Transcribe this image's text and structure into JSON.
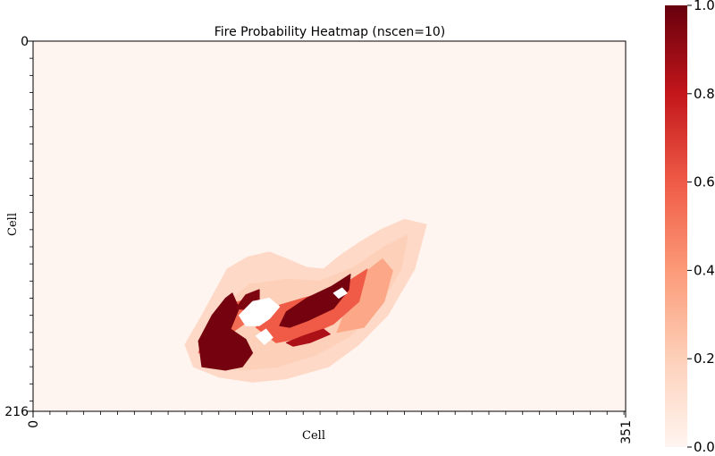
{
  "chart_data": {
    "type": "heatmap",
    "title": "Fire Probability Heatmap (nscen=10)",
    "xlabel": "Cell",
    "ylabel": "Cell",
    "x_ticks": [
      {
        "value": 0,
        "label": "0"
      },
      {
        "value": 351,
        "label": "351"
      }
    ],
    "y_ticks": [
      {
        "value": 0,
        "label": "0"
      },
      {
        "value": 216,
        "label": "216"
      }
    ],
    "xlim": [
      0,
      351
    ],
    "ylim": [
      216,
      0
    ],
    "grid_size": [
      352,
      217
    ],
    "colormap": "Reds",
    "colorbar": {
      "range": [
        0.0,
        1.0
      ],
      "ticks": [
        "0.0",
        "0.2",
        "0.4",
        "0.6",
        "0.8",
        "1.0"
      ],
      "colors": [
        "#fff5f0",
        "#fdd0b9",
        "#fc9a78",
        "#ef5b46",
        "#c3161b",
        "#67000d"
      ]
    },
    "background_color": "#fff5f0",
    "regions": [
      {
        "probability": 0.15,
        "polygon": [
          [
            90,
            177
          ],
          [
            100,
            160
          ],
          [
            115,
            133
          ],
          [
            127,
            126
          ],
          [
            140,
            123
          ],
          [
            150,
            127
          ],
          [
            162,
            132
          ],
          [
            172,
            133
          ],
          [
            182,
            125
          ],
          [
            194,
            117
          ],
          [
            206,
            110
          ],
          [
            220,
            104
          ],
          [
            233,
            107
          ],
          [
            226,
            133
          ],
          [
            210,
            160
          ],
          [
            193,
            177
          ],
          [
            175,
            190
          ],
          [
            150,
            197
          ],
          [
            130,
            199
          ],
          [
            110,
            196
          ],
          [
            95,
            190
          ]
        ]
      },
      {
        "probability": 0.2,
        "polygon": [
          [
            100,
            177
          ],
          [
            110,
            157
          ],
          [
            128,
            142
          ],
          [
            150,
            139
          ],
          [
            170,
            140
          ],
          [
            190,
            132
          ],
          [
            208,
            120
          ],
          [
            222,
            113
          ],
          [
            218,
            133
          ],
          [
            205,
            155
          ],
          [
            188,
            172
          ],
          [
            168,
            183
          ],
          [
            145,
            190
          ],
          [
            123,
            192
          ],
          [
            104,
            188
          ]
        ]
      },
      {
        "probability": 0.35,
        "polygon": [
          [
            180,
            170
          ],
          [
            188,
            150
          ],
          [
            198,
            134
          ],
          [
            207,
            127
          ],
          [
            213,
            134
          ],
          [
            208,
            152
          ],
          [
            196,
            167
          ]
        ]
      },
      {
        "probability": 0.55,
        "polygon": [
          [
            98,
            182
          ],
          [
            104,
            164
          ],
          [
            117,
            153
          ],
          [
            130,
            150
          ],
          [
            128,
            163
          ],
          [
            112,
            174
          ]
        ]
      },
      {
        "probability": 0.6,
        "polygon": [
          [
            132,
            167
          ],
          [
            146,
            154
          ],
          [
            160,
            150
          ],
          [
            175,
            146
          ],
          [
            187,
            140
          ],
          [
            198,
            133
          ],
          [
            193,
            152
          ],
          [
            178,
            165
          ],
          [
            160,
            173
          ],
          [
            144,
            176
          ]
        ]
      },
      {
        "probability": 0.97,
        "polygon": [
          [
            100,
            190
          ],
          [
            98,
            175
          ],
          [
            106,
            160
          ],
          [
            114,
            150
          ],
          [
            118,
            147
          ],
          [
            122,
            156
          ],
          [
            117,
            168
          ],
          [
            126,
            174
          ],
          [
            130,
            182
          ],
          [
            124,
            190
          ],
          [
            114,
            192
          ]
        ]
      },
      {
        "probability": 0.97,
        "polygon": [
          [
            146,
            166
          ],
          [
            150,
            158
          ],
          [
            162,
            150
          ],
          [
            177,
            143
          ],
          [
            188,
            136
          ],
          [
            187,
            145
          ],
          [
            178,
            156
          ],
          [
            163,
            163
          ],
          [
            152,
            167
          ]
        ]
      },
      {
        "probability": 0.95,
        "polygon": [
          [
            120,
            156
          ],
          [
            126,
            148
          ],
          [
            134,
            145
          ],
          [
            134,
            151
          ],
          [
            128,
            157
          ]
        ]
      },
      {
        "probability": 0.85,
        "polygon": [
          [
            150,
            176
          ],
          [
            160,
            172
          ],
          [
            172,
            168
          ],
          [
            176,
            171
          ],
          [
            164,
            176
          ],
          [
            154,
            178
          ]
        ]
      },
      {
        "probability": 0.0,
        "polygon": [
          [
            122,
            160
          ],
          [
            130,
            152
          ],
          [
            140,
            150
          ],
          [
            146,
            155
          ],
          [
            140,
            162
          ],
          [
            134,
            166
          ],
          [
            126,
            166
          ]
        ]
      },
      {
        "probability": 0.0,
        "polygon": [
          [
            132,
            172
          ],
          [
            138,
            168
          ],
          [
            142,
            173
          ],
          [
            137,
            177
          ]
        ]
      },
      {
        "probability": 0.0,
        "polygon": [
          [
            178,
            147
          ],
          [
            183,
            144
          ],
          [
            186,
            147
          ],
          [
            181,
            150
          ]
        ]
      }
    ]
  }
}
